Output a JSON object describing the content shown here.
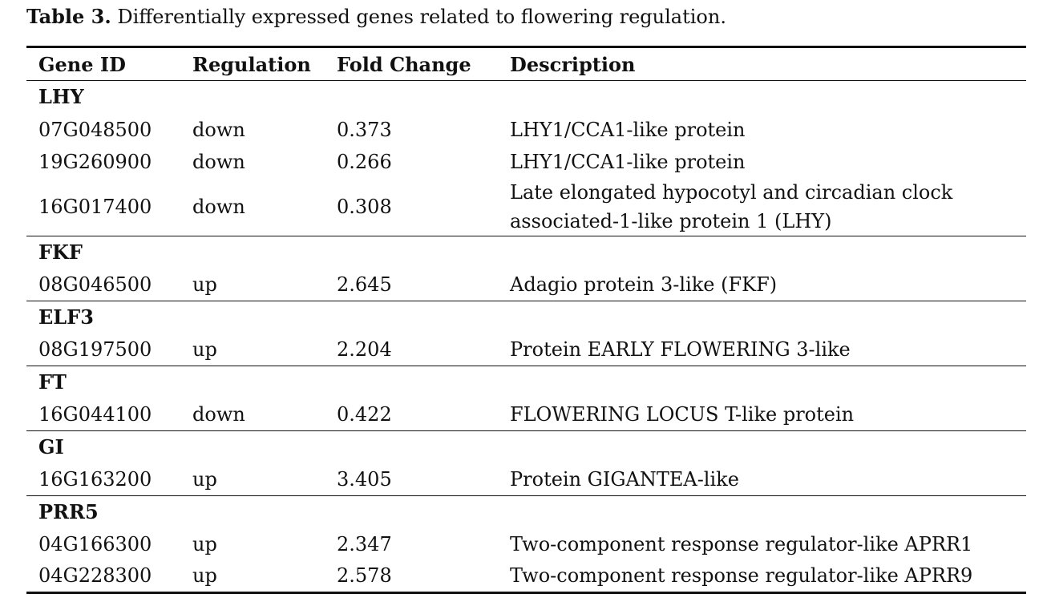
{
  "caption": {
    "label": "Table 3.",
    "text": " Differentially expressed genes related to flowering regulation."
  },
  "headers": [
    "Gene ID",
    "Regulation",
    "Fold Change",
    "Description"
  ],
  "groups": [
    {
      "name": "LHY",
      "rows": [
        [
          "07G048500",
          "down",
          "0.373",
          "LHY1/CCA1-like protein"
        ],
        [
          "19G260900",
          "down",
          "0.266",
          "LHY1/CCA1-like protein"
        ],
        [
          "16G017400",
          "down",
          "0.308",
          "Late elongated hypocotyl and circadian clock\nassociated-1-like protein 1 (LHY)"
        ]
      ]
    },
    {
      "name": "FKF",
      "rows": [
        [
          "08G046500",
          "up",
          "2.645",
          "Adagio protein 3-like (FKF)"
        ]
      ]
    },
    {
      "name": "ELF3",
      "rows": [
        [
          "08G197500",
          "up",
          "2.204",
          "Protein EARLY FLOWERING 3-like"
        ]
      ]
    },
    {
      "name": "FT",
      "rows": [
        [
          "16G044100",
          "down",
          "0.422",
          "FLOWERING LOCUS T-like protein"
        ]
      ]
    },
    {
      "name": "GI",
      "rows": [
        [
          "16G163200",
          "up",
          "3.405",
          "Protein GIGANTEA-like"
        ]
      ]
    },
    {
      "name": "PRR5",
      "rows": [
        [
          "04G166300",
          "up",
          "2.347",
          "Two-component response regulator-like APRR1"
        ],
        [
          "04G228300",
          "up",
          "2.578",
          "Two-component response regulator-like APRR9"
        ]
      ]
    }
  ]
}
